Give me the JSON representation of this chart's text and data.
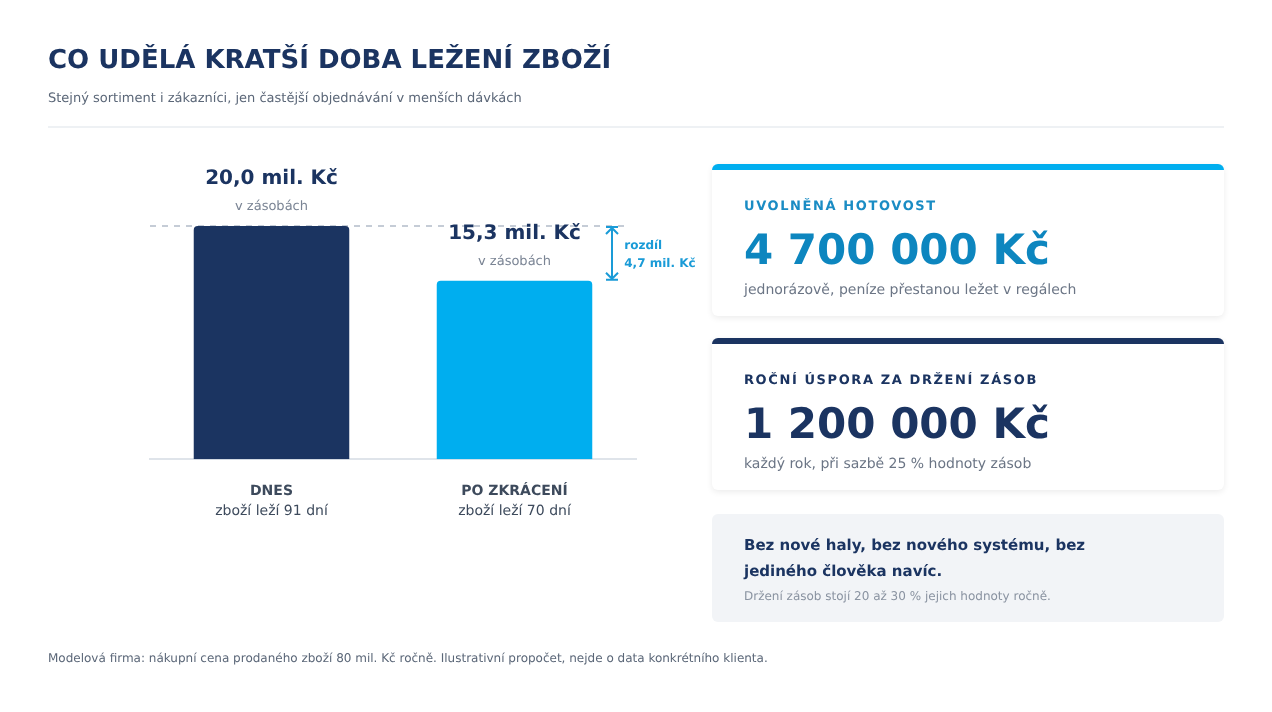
{
  "chart_data": {
    "type": "bar",
    "title": "CO UDĚLÁ KRATŠÍ DOBA LEŽENÍ ZBOŽÍ",
    "subtitle": "Stejný sortiment i zákazníci, jen častější objednávání v menších dávkách",
    "categories": [
      "DNES",
      "PO ZKRÁCENÍ"
    ],
    "values": [
      20.0,
      15.3
    ],
    "colors": [
      "#1b3461",
      "#00aeef"
    ],
    "value_labels": [
      "20,0 mil. Kč",
      "15,3 mil. Kč"
    ],
    "ref_lines": [
      {
        "axis": "y",
        "value": 20.0,
        "color": "#c5ccd6",
        "line_style": "dashed"
      }
    ],
    "annotations": [
      {
        "text": "v zásobách",
        "x": "DNES",
        "y": 20.0
      },
      {
        "text": "v zásobách",
        "x": "PO ZKRÁCENÍ",
        "y": 15.3
      },
      "zboží leží 91 dní",
      "zboží leží 70 dní",
      "rozdíl 4,7 mil. Kč",
      "UVOLNĚNÁ HOTOVOST",
      "4 700 000 Kč",
      "jednorázově, peníze přestanou ležet v regálech",
      "ROČNÍ ÚSPORA ZA DRŽENÍ ZÁSOB",
      "1 200 000 Kč",
      "každý rok, při sazbě 25 % hodnoty zásob",
      "Bez nové haly, bez nového systému, bez jediného člověka navíc.",
      "Držení zásob stojí 20 až 30 % jejich hodnoty ročně.",
      "Modelová firma: nákupní cena prodaného zboží 80 mil. Kč ročně. Ilustrativní propočet, nejde o data konkrétního klienta."
    ],
    "grid": false,
    "legend": false
  }
}
